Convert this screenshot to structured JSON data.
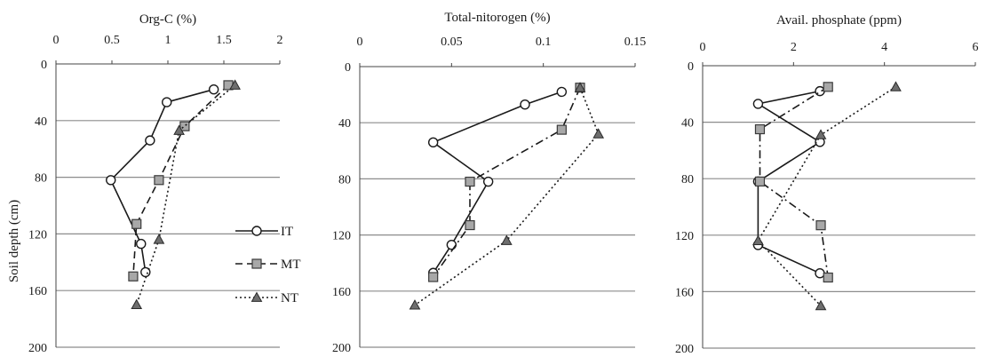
{
  "chart_data": [
    {
      "type": "line",
      "title": "Org-C (%)",
      "ylabel": "Soil depth (cm)",
      "xlim": [
        0,
        2
      ],
      "xticks": [
        "0",
        "0.5",
        "1",
        "1.5",
        "2"
      ],
      "ylim": [
        0,
        200
      ],
      "yticks": [
        "0",
        "40",
        "80",
        "120",
        "160",
        "200"
      ],
      "x_axis_position": "top",
      "y_inverted": true,
      "grid": true,
      "legend_position": "inside-right",
      "series": [
        {
          "name": "IT",
          "marker": "circle",
          "line": "solid",
          "x": [
            1.41,
            0.99,
            0.84,
            0.49,
            0.76,
            0.8
          ],
          "y": [
            18,
            27,
            54,
            82,
            127,
            147
          ]
        },
        {
          "name": "MT",
          "marker": "square",
          "line": "dashed",
          "x": [
            1.54,
            1.15,
            0.92,
            0.72,
            0.69
          ],
          "y": [
            15,
            44,
            82,
            113,
            150
          ]
        },
        {
          "name": "NT",
          "marker": "triangle",
          "line": "dotted",
          "x": [
            1.6,
            1.1,
            0.92,
            0.72
          ],
          "y": [
            15,
            47,
            124,
            170
          ]
        }
      ]
    },
    {
      "type": "line",
      "title": "Total-nitorogen (%)",
      "xlim": [
        0,
        0.15
      ],
      "xticks": [
        "0",
        "0.05",
        "0.1",
        "0.15"
      ],
      "ylim": [
        0,
        200
      ],
      "yticks": [
        "0",
        "40",
        "80",
        "120",
        "160",
        "200"
      ],
      "x_axis_position": "top",
      "y_inverted": true,
      "grid": true,
      "series": [
        {
          "name": "IT",
          "marker": "circle",
          "line": "solid",
          "x": [
            0.11,
            0.09,
            0.04,
            0.07,
            0.05,
            0.04
          ],
          "y": [
            18,
            27,
            54,
            82,
            127,
            147
          ]
        },
        {
          "name": "MT",
          "marker": "square",
          "line": "dashdot",
          "x": [
            0.12,
            0.11,
            0.06,
            0.06,
            0.04
          ],
          "y": [
            15,
            45,
            82,
            113,
            150
          ]
        },
        {
          "name": "NT",
          "marker": "triangle",
          "line": "dotted",
          "x": [
            0.12,
            0.13,
            0.08,
            0.03
          ],
          "y": [
            15,
            48,
            124,
            170
          ]
        }
      ]
    },
    {
      "type": "line",
      "title": "Avail. phosphate (ppm)",
      "xlim": [
        0,
        6
      ],
      "xticks": [
        "0",
        "2",
        "4",
        "6"
      ],
      "ylim": [
        0,
        200
      ],
      "yticks": [
        "0",
        "40",
        "80",
        "120",
        "160",
        "200"
      ],
      "x_axis_position": "top",
      "y_inverted": true,
      "grid": true,
      "series": [
        {
          "name": "IT",
          "marker": "circle",
          "line": "solid",
          "x": [
            2.58,
            1.22,
            2.58,
            1.22,
            1.22,
            2.58
          ],
          "y": [
            18,
            27,
            54,
            82,
            127,
            147
          ]
        },
        {
          "name": "MT",
          "marker": "square",
          "line": "dashdot",
          "x": [
            2.76,
            1.26,
            1.26,
            2.6,
            2.76
          ],
          "y": [
            15,
            45,
            82,
            113,
            150
          ]
        },
        {
          "name": "NT",
          "marker": "triangle",
          "line": "dotted",
          "x": [
            4.25,
            2.6,
            1.22,
            2.6
          ],
          "y": [
            15,
            49,
            124,
            170
          ]
        }
      ]
    }
  ]
}
